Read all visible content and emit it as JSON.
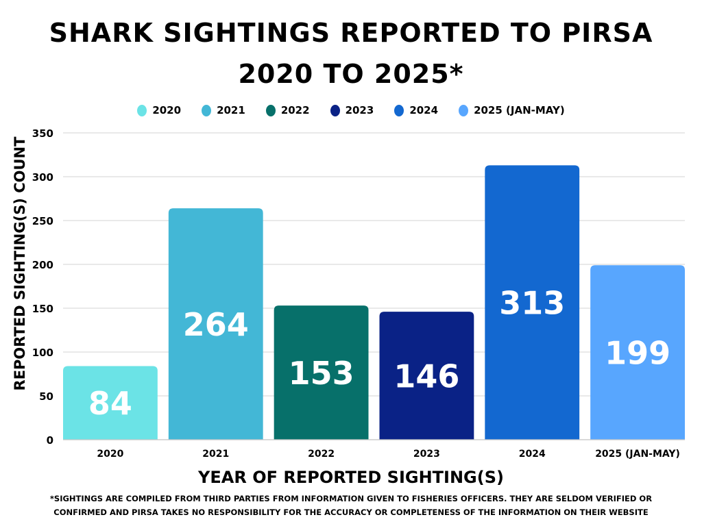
{
  "title_line1": "SHARK SIGHTINGS REPORTED TO PIRSA",
  "title_line2": "2020 TO 2025*",
  "footnote_line1": "*SIGHTINGS ARE COMPILED FROM THIRD PARTIES FROM INFORMATION GIVEN TO FISHERIES OFFICERS. THEY ARE SELDOM VERIFIED OR",
  "footnote_line2": "CONFIRMED AND PIRSA TAKES NO RESPONSIBILITY FOR THE ACCURACY OR COMPLETENESS OF THE INFORMATION ON THEIR WEBSITE",
  "chart_data": {
    "type": "bar",
    "title": "SHARK SIGHTINGS REPORTED TO PIRSA 2020 TO 2025*",
    "xlabel": "YEAR OF REPORTED SIGHTING(S)",
    "ylabel": "REPORTED SIGHTING(S) COUNT",
    "categories": [
      "2020",
      "2021",
      "2022",
      "2023",
      "2024",
      "2025 (JAN-MAY)"
    ],
    "values": [
      84,
      264,
      153,
      146,
      313,
      199
    ],
    "colors": [
      "#6be3e6",
      "#43b7d6",
      "#07706a",
      "#0a2286",
      "#1368d0",
      "#58a6fe"
    ],
    "ylim": [
      0,
      350
    ],
    "yticks": [
      "0",
      "50",
      "100",
      "150",
      "200",
      "250",
      "300",
      "350"
    ],
    "grid": true,
    "legend_position": "top-center",
    "legend": [
      "2020",
      "2021",
      "2022",
      "2023",
      "2024",
      "2025 (JAN-MAY)"
    ]
  }
}
